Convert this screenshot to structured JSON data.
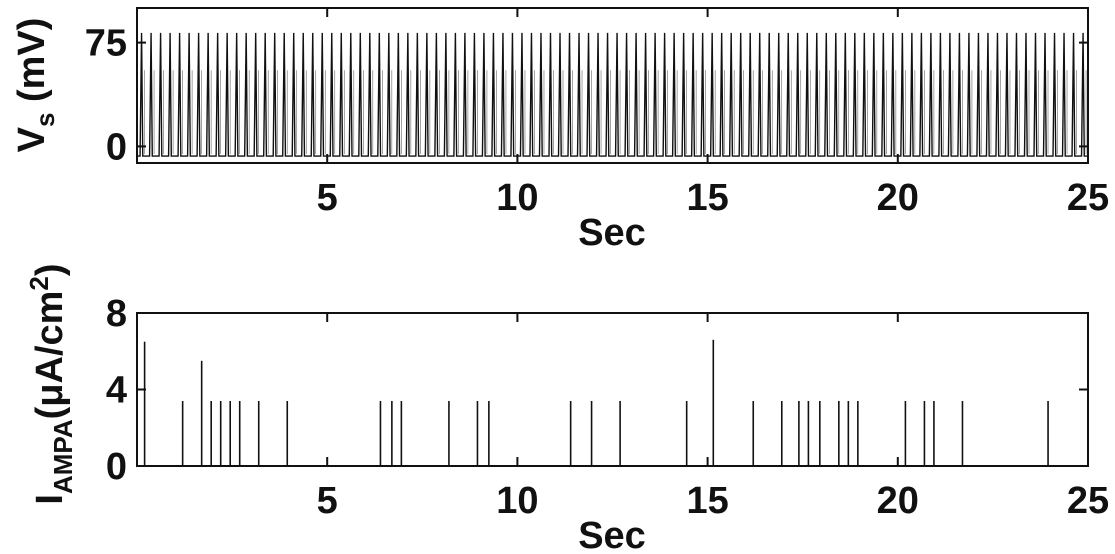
{
  "chart_data": [
    {
      "type": "line",
      "panel": "top",
      "ylabel_main": "V",
      "ylabel_sub": "s",
      "ylabel_unit": " (mV)",
      "xlabel": "Sec",
      "xlim": [
        0,
        25
      ],
      "ylim": [
        -12,
        100
      ],
      "xticks": [
        5,
        10,
        15,
        20,
        25
      ],
      "yticks": [
        0,
        75
      ],
      "grid": false,
      "series": [
        {
          "spike_period_s": 0.25,
          "first_spike_s": 0.12,
          "peak_mV": 82,
          "trough_mV": -7,
          "secondary_mV": 55
        }
      ]
    },
    {
      "type": "bar",
      "panel": "bottom",
      "ylabel_main": "I",
      "ylabel_sub": "AMPA",
      "ylabel_unit": "(μA/cm",
      "ylabel_sup": "2",
      "ylabel_close": ")",
      "xlabel": "Sec",
      "xlim": [
        0,
        25
      ],
      "ylim": [
        0,
        8
      ],
      "xticks": [
        5,
        10,
        15,
        20,
        25
      ],
      "yticks": [
        0,
        4,
        8
      ],
      "grid": false,
      "series": [
        {
          "x": [
            0.2,
            1.2,
            1.7,
            1.95,
            2.2,
            2.45,
            2.7,
            3.2,
            3.95,
            6.4,
            6.7,
            6.95,
            8.2,
            8.95,
            9.25,
            11.4,
            11.95,
            12.7,
            14.45,
            15.15,
            16.2,
            16.95,
            17.4,
            17.65,
            17.95,
            18.45,
            18.7,
            18.95,
            20.2,
            20.7,
            20.95,
            21.7,
            23.95
          ],
          "y": [
            6.5,
            3.4,
            5.5,
            3.4,
            3.4,
            3.4,
            3.4,
            3.4,
            3.4,
            3.4,
            3.4,
            3.4,
            3.4,
            3.4,
            3.4,
            3.4,
            3.4,
            3.4,
            3.4,
            6.6,
            3.4,
            3.4,
            3.4,
            3.4,
            3.4,
            3.4,
            3.4,
            3.4,
            3.4,
            3.4,
            3.4,
            3.4,
            3.4
          ]
        }
      ]
    }
  ]
}
